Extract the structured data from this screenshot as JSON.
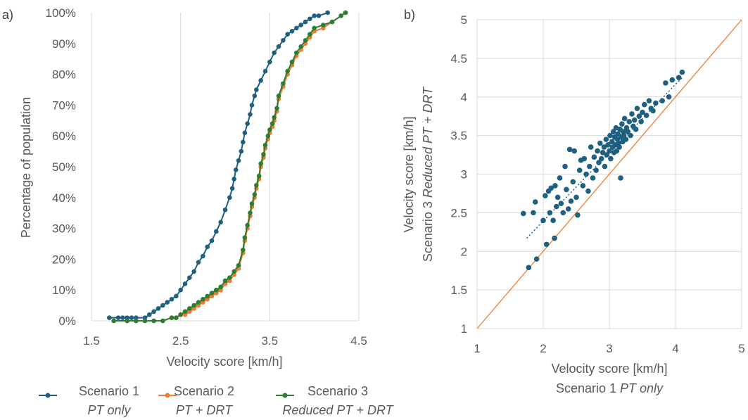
{
  "chart_data": [
    {
      "panel": "a)",
      "type": "line",
      "xlabel": "Velocity score [km/h]",
      "ylabel": "Percentage of population",
      "xlim": [
        1.5,
        4.5
      ],
      "ylim": [
        0,
        100
      ],
      "xticks": [
        "1.5",
        "2.5",
        "3.5",
        "4.5"
      ],
      "yticks": [
        "0%",
        "10%",
        "20%",
        "30%",
        "40%",
        "50%",
        "60%",
        "70%",
        "80%",
        "90%",
        "100%"
      ],
      "grid": "vertical",
      "legend": "bottom",
      "series": [
        {
          "name": "Scenario 1",
          "subname": "PT only",
          "color": "#1f5f7f",
          "x": [
            1.7,
            1.8,
            1.85,
            1.9,
            1.95,
            2.0,
            2.1,
            2.15,
            2.2,
            2.25,
            2.3,
            2.35,
            2.4,
            2.45,
            2.5,
            2.55,
            2.6,
            2.65,
            2.7,
            2.75,
            2.8,
            2.85,
            2.9,
            2.95,
            3.0,
            3.05,
            3.08,
            3.1,
            3.12,
            3.15,
            3.18,
            3.2,
            3.22,
            3.25,
            3.28,
            3.3,
            3.33,
            3.35,
            3.4,
            3.45,
            3.5,
            3.55,
            3.6,
            3.65,
            3.7,
            3.75,
            3.8,
            3.85,
            3.9,
            3.95,
            4.0,
            4.05,
            4.15
          ],
          "values": [
            1,
            1,
            1,
            1,
            1,
            1,
            1,
            2,
            3,
            4,
            5,
            6,
            7,
            8,
            10,
            12,
            14,
            16,
            19,
            21,
            24,
            26,
            29,
            32,
            36,
            40,
            43,
            46,
            49,
            52,
            55,
            58,
            61,
            64,
            67,
            70,
            73,
            75,
            78,
            81,
            84,
            87,
            89,
            91,
            93,
            94,
            95,
            96,
            97,
            98,
            99,
            99,
            100
          ]
        },
        {
          "name": "Scenario 2",
          "subname": "PT + DRT",
          "color": "#ed7d31",
          "x": [
            1.75,
            1.9,
            2.0,
            2.1,
            2.2,
            2.3,
            2.4,
            2.45,
            2.5,
            2.55,
            2.6,
            2.65,
            2.7,
            2.75,
            2.8,
            2.85,
            2.9,
            2.95,
            3.0,
            3.05,
            3.1,
            3.15,
            3.2,
            3.22,
            3.25,
            3.28,
            3.3,
            3.33,
            3.35,
            3.38,
            3.4,
            3.43,
            3.45,
            3.48,
            3.5,
            3.53,
            3.55,
            3.58,
            3.6,
            3.65,
            3.7,
            3.75,
            3.8,
            3.85,
            3.9,
            3.95,
            4.0,
            4.1,
            4.2,
            4.3,
            4.35
          ],
          "values": [
            0,
            0,
            0,
            0,
            0,
            0,
            1,
            1,
            2,
            2,
            3,
            4,
            5,
            6,
            7,
            8,
            9,
            10,
            12,
            13,
            15,
            17,
            22,
            26,
            30,
            34,
            37,
            40,
            43,
            46,
            50,
            53,
            56,
            59,
            61,
            63,
            65,
            68,
            72,
            76,
            80,
            83,
            86,
            88,
            90,
            92,
            94,
            95,
            97,
            99,
            100
          ]
        },
        {
          "name": "Scenario 3",
          "subname": "Reduced PT + DRT",
          "color": "#2e7d32",
          "x": [
            1.75,
            1.9,
            2.0,
            2.1,
            2.2,
            2.3,
            2.4,
            2.45,
            2.5,
            2.55,
            2.6,
            2.65,
            2.7,
            2.75,
            2.8,
            2.85,
            2.9,
            2.95,
            3.0,
            3.05,
            3.1,
            3.15,
            3.2,
            3.22,
            3.25,
            3.28,
            3.3,
            3.33,
            3.35,
            3.38,
            3.4,
            3.43,
            3.45,
            3.48,
            3.5,
            3.53,
            3.55,
            3.58,
            3.6,
            3.65,
            3.7,
            3.75,
            3.8,
            3.85,
            3.9,
            3.95,
            4.0,
            4.1,
            4.2,
            4.3,
            4.35
          ],
          "values": [
            0,
            0,
            0,
            0,
            0,
            0,
            1,
            1,
            2,
            3,
            4,
            5,
            6,
            7,
            8,
            9,
            10,
            11,
            13,
            14,
            16,
            18,
            23,
            27,
            31,
            35,
            38,
            41,
            44,
            47,
            51,
            54,
            57,
            60,
            62,
            64,
            66,
            69,
            73,
            77,
            81,
            84,
            87,
            89,
            91,
            93,
            95,
            96,
            97,
            99,
            100
          ]
        }
      ]
    },
    {
      "panel": "b)",
      "type": "scatter",
      "xlabel": "Velocity score [km/h]",
      "xlabel2_prefix": "Scenario 1 ",
      "xlabel2_italic": "PT only",
      "ylabel": "Velocity score [km/h]",
      "ylabel2_prefix": "Scenario 3 ",
      "ylabel2_italic": "Reduced PT + DRT",
      "xlim": [
        1,
        5
      ],
      "ylim": [
        1,
        5
      ],
      "xticks": [
        "1",
        "2",
        "3",
        "4",
        "5"
      ],
      "yticks": [
        "1",
        "1.5",
        "2",
        "2.5",
        "3",
        "3.5",
        "4",
        "4.5",
        "5"
      ],
      "grid": "both",
      "marker_color": "#1f5f7f",
      "reference_line_color": "#ed7d31",
      "trend_line": {
        "x": [
          1.75,
          4.1
        ],
        "y": [
          2.17,
          4.25
        ]
      },
      "points": [
        [
          1.7,
          2.49
        ],
        [
          1.78,
          1.79
        ],
        [
          1.85,
          2.5
        ],
        [
          1.88,
          2.64
        ],
        [
          1.9,
          1.9
        ],
        [
          2.0,
          2.4
        ],
        [
          2.03,
          2.72
        ],
        [
          2.05,
          2.09
        ],
        [
          2.08,
          2.78
        ],
        [
          2.1,
          2.5
        ],
        [
          2.12,
          2.82
        ],
        [
          2.15,
          2.4
        ],
        [
          2.17,
          2.17
        ],
        [
          2.18,
          2.85
        ],
        [
          2.2,
          2.58
        ],
        [
          2.22,
          2.7
        ],
        [
          2.25,
          2.95
        ],
        [
          2.27,
          2.62
        ],
        [
          2.3,
          2.5
        ],
        [
          2.33,
          3.1
        ],
        [
          2.35,
          2.8
        ],
        [
          2.38,
          2.55
        ],
        [
          2.4,
          3.32
        ],
        [
          2.42,
          2.65
        ],
        [
          2.45,
          2.9
        ],
        [
          2.47,
          3.3
        ],
        [
          2.5,
          2.7
        ],
        [
          2.52,
          2.47
        ],
        [
          2.55,
          3.05
        ],
        [
          2.57,
          3.18
        ],
        [
          2.6,
          2.85
        ],
        [
          2.62,
          3.2
        ],
        [
          2.65,
          3.0
        ],
        [
          2.68,
          2.78
        ],
        [
          2.7,
          3.1
        ],
        [
          2.72,
          3.35
        ],
        [
          2.75,
          2.95
        ],
        [
          2.77,
          3.22
        ],
        [
          2.8,
          3.05
        ],
        [
          2.82,
          3.3
        ],
        [
          2.84,
          3.15
        ],
        [
          2.86,
          3.4
        ],
        [
          2.88,
          3.2
        ],
        [
          2.9,
          3.28
        ],
        [
          2.92,
          3.35
        ],
        [
          2.93,
          3.1
        ],
        [
          2.95,
          3.45
        ],
        [
          2.96,
          3.25
        ],
        [
          2.98,
          3.38
        ],
        [
          3.0,
          3.3
        ],
        [
          3.01,
          3.5
        ],
        [
          3.02,
          3.2
        ],
        [
          3.04,
          3.42
        ],
        [
          3.05,
          3.35
        ],
        [
          3.06,
          3.55
        ],
        [
          3.07,
          3.28
        ],
        [
          3.08,
          3.48
        ],
        [
          3.09,
          3.38
        ],
        [
          3.1,
          3.6
        ],
        [
          3.11,
          3.3
        ],
        [
          3.12,
          3.45
        ],
        [
          3.13,
          3.52
        ],
        [
          3.14,
          3.4
        ],
        [
          3.15,
          3.35
        ],
        [
          3.16,
          3.58
        ],
        [
          3.17,
          2.95
        ],
        [
          3.18,
          3.48
        ],
        [
          3.19,
          3.65
        ],
        [
          3.2,
          3.42
        ],
        [
          3.21,
          3.55
        ],
        [
          3.22,
          3.5
        ],
        [
          3.23,
          3.72
        ],
        [
          3.25,
          3.45
        ],
        [
          3.26,
          3.6
        ],
        [
          3.28,
          3.55
        ],
        [
          3.3,
          3.68
        ],
        [
          3.32,
          3.5
        ],
        [
          3.34,
          3.78
        ],
        [
          3.36,
          3.62
        ],
        [
          3.38,
          3.7
        ],
        [
          3.4,
          3.58
        ],
        [
          3.42,
          3.85
        ],
        [
          3.45,
          3.75
        ],
        [
          3.48,
          3.68
        ],
        [
          3.5,
          3.8
        ],
        [
          3.53,
          3.9
        ],
        [
          3.56,
          3.76
        ],
        [
          3.6,
          3.95
        ],
        [
          3.63,
          3.85
        ],
        [
          3.66,
          3.82
        ],
        [
          3.7,
          3.92
        ],
        [
          3.8,
          3.95
        ],
        [
          3.85,
          4.18
        ],
        [
          3.9,
          4.0
        ],
        [
          3.95,
          4.22
        ],
        [
          4.05,
          4.25
        ],
        [
          4.1,
          4.32
        ]
      ]
    }
  ]
}
